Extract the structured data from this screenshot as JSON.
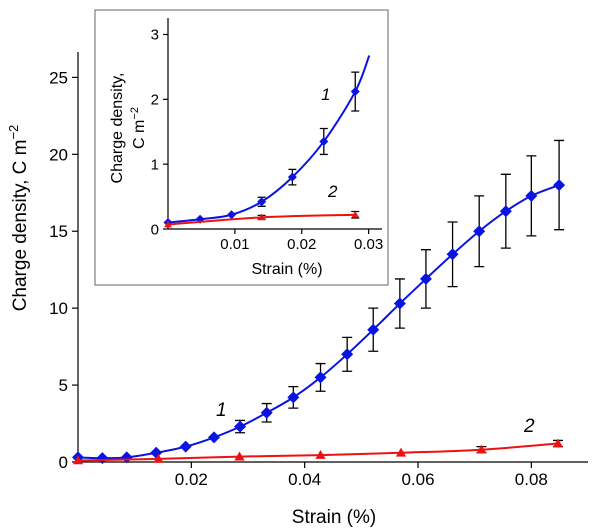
{
  "colors": {
    "series1": "#0a14e0",
    "series2": "#ee1111",
    "axis": "#000000",
    "inset_border": "#666666"
  },
  "chart_data": [
    {
      "type": "line",
      "xlabel": "Strain (%)",
      "ylabel": "Charge density, C m",
      "ylabel_sup": "−2",
      "xlim": [
        0,
        0.09
      ],
      "ylim": [
        0,
        26
      ],
      "xticks": [
        0.02,
        0.04,
        0.06,
        0.08
      ],
      "xtick_labels": [
        "0.02",
        "0.04",
        "0.06",
        "0.08"
      ],
      "yticks": [
        0,
        5,
        10,
        15,
        20,
        25
      ],
      "ytick_labels": [
        "0",
        "5",
        "10",
        "15",
        "20",
        "25"
      ],
      "series": [
        {
          "label": "1",
          "marker": "diamond",
          "x": [
            0,
            0.0043,
            0.0086,
            0.0138,
            0.019,
            0.024,
            0.0286,
            0.0333,
            0.038,
            0.0428,
            0.0475,
            0.0521,
            0.0568,
            0.0614,
            0.0661,
            0.0708,
            0.0755,
            0.08,
            0.0849
          ],
          "y": [
            0.3,
            0.25,
            0.3,
            0.6,
            1.0,
            1.6,
            2.3,
            3.2,
            4.2,
            5.5,
            7.0,
            8.6,
            10.3,
            11.9,
            13.5,
            15.0,
            16.3,
            17.3,
            18.0
          ],
          "err": [
            0,
            0,
            0,
            0,
            0,
            0,
            0.4,
            0.6,
            0.7,
            0.9,
            1.1,
            1.4,
            1.6,
            1.9,
            2.1,
            2.3,
            2.4,
            2.6,
            2.9
          ]
        },
        {
          "label": "2",
          "marker": "triangle",
          "x": [
            0,
            0.0142,
            0.0285,
            0.0428,
            0.057,
            0.0712,
            0.0847
          ],
          "y": [
            0.1,
            0.2,
            0.35,
            0.45,
            0.6,
            0.8,
            1.2
          ],
          "err": [
            0,
            0,
            0,
            0,
            0,
            0.2,
            0.2
          ]
        }
      ]
    },
    {
      "type": "line",
      "inset": true,
      "xlabel": "Strain (%)",
      "ylabel_line1": "Charge density,",
      "ylabel_line2": "C m",
      "ylabel_sup": "−2",
      "xlim": [
        0,
        0.032
      ],
      "ylim": [
        0,
        3.1
      ],
      "xticks": [
        0.01,
        0.02,
        0.03
      ],
      "xtick_labels": [
        "0.01",
        "0.02",
        "0.03"
      ],
      "yticks": [
        0,
        1,
        2,
        3
      ],
      "ytick_labels": [
        "0",
        "1",
        "2",
        "3"
      ],
      "series": [
        {
          "label": "1",
          "marker": "diamond",
          "x": [
            0,
            0.0048,
            0.0095,
            0.014,
            0.0186,
            0.0233,
            0.028
          ],
          "y": [
            0.1,
            0.15,
            0.22,
            0.42,
            0.8,
            1.35,
            2.12
          ],
          "err": [
            0,
            0,
            0,
            0.07,
            0.12,
            0.2,
            0.3
          ]
        },
        {
          "label": "2",
          "marker": "triangle",
          "x": [
            0,
            0.014,
            0.028
          ],
          "y": [
            0.07,
            0.18,
            0.22
          ],
          "err": [
            0,
            0.03,
            0.05
          ]
        }
      ]
    }
  ]
}
